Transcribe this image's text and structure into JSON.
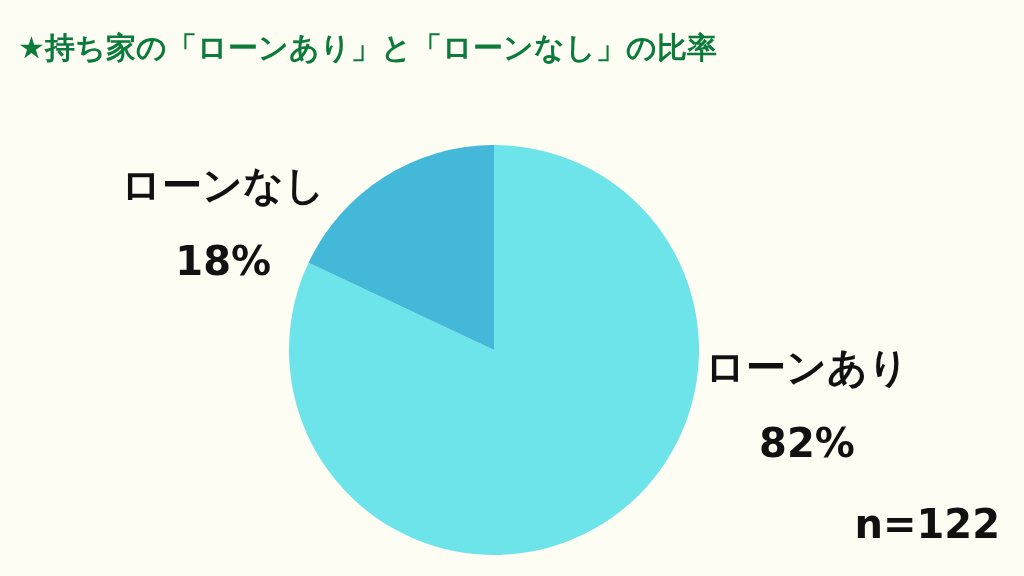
{
  "chart_data": {
    "type": "pie",
    "title": "★持ち家の「ローンあり」と「ローンなし」の比率",
    "categories": [
      "ローンあり",
      "ローンなし"
    ],
    "values": [
      82,
      18
    ],
    "colors": [
      "#6ce4e9",
      "#43b8d8"
    ],
    "value_labels": [
      "82%",
      "18%"
    ],
    "annotations": [
      "n=122"
    ]
  }
}
